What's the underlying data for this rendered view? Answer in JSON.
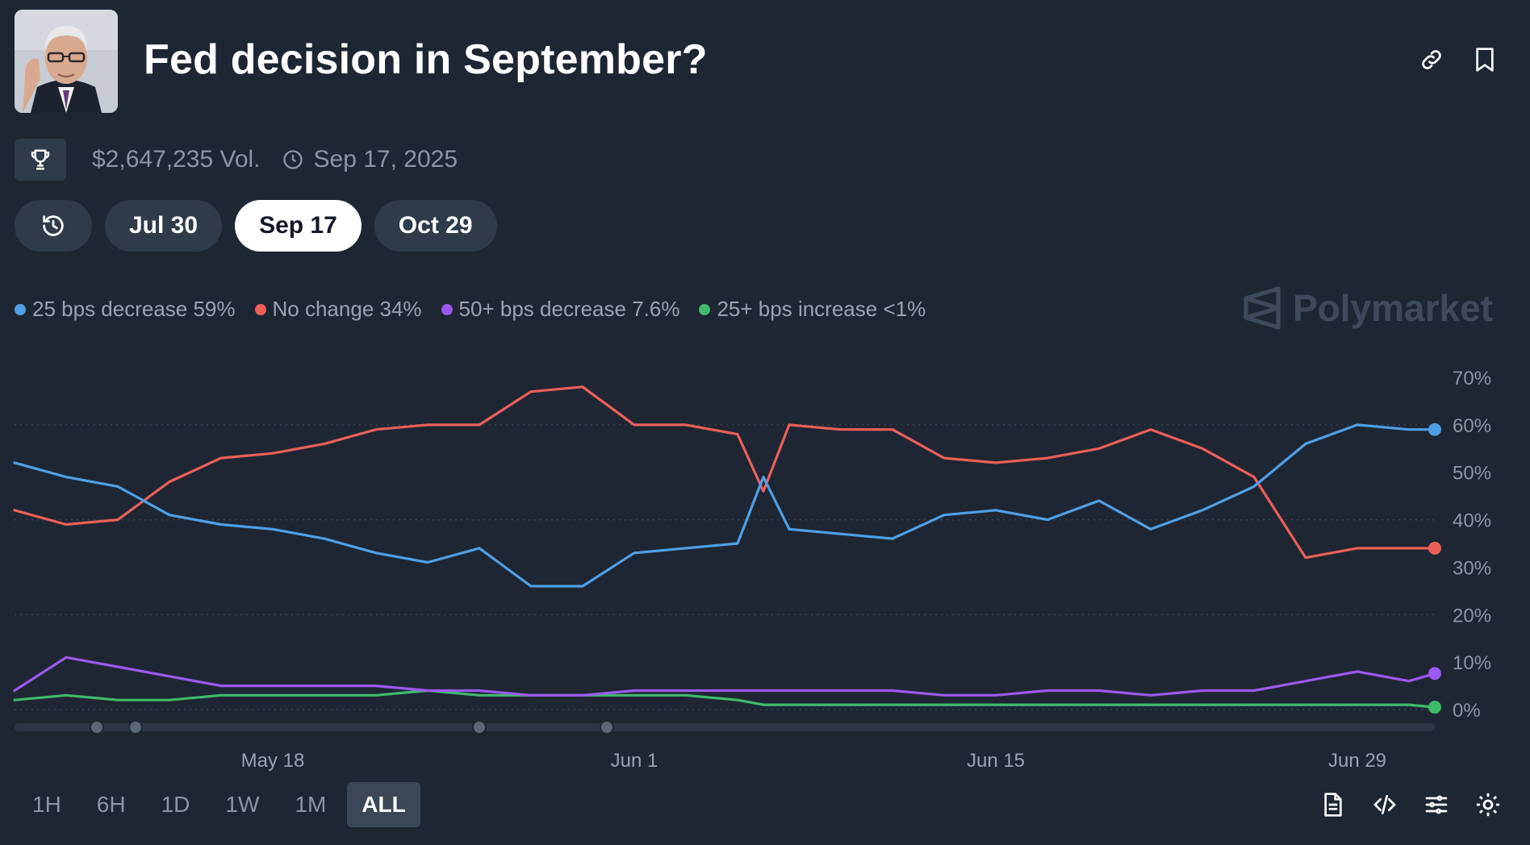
{
  "header": {
    "title": "Fed decision in September?",
    "avatar_icon": "portrait-photo"
  },
  "actions": {
    "link_icon": "link-icon",
    "bookmark_icon": "bookmark-icon"
  },
  "meta": {
    "volume": "$2,647,235 Vol.",
    "end_date": "Sep 17, 2025"
  },
  "date_tabs": [
    {
      "label": "Jul 30",
      "active": false
    },
    {
      "label": "Sep 17",
      "active": true
    },
    {
      "label": "Oct 29",
      "active": false
    }
  ],
  "legend": [
    {
      "label": "25 bps decrease 59%",
      "color": "#4f9fe6"
    },
    {
      "label": "No change 34%",
      "color": "#ec5f59"
    },
    {
      "label": "50+ bps decrease 7.6%",
      "color": "#9b59f0"
    },
    {
      "label": "25+ bps increase <1%",
      "color": "#3fba6a"
    }
  ],
  "brand": "Polymarket",
  "timeframes": [
    {
      "label": "1H",
      "active": false
    },
    {
      "label": "6H",
      "active": false
    },
    {
      "label": "1D",
      "active": false
    },
    {
      "label": "1W",
      "active": false
    },
    {
      "label": "1M",
      "active": false
    },
    {
      "label": "ALL",
      "active": true
    }
  ],
  "chart_data": {
    "type": "line",
    "x_ticks": [
      "May 18",
      "Jun 1",
      "Jun 15",
      "Jun 29"
    ],
    "y_ticks": [
      "70%",
      "60%",
      "50%",
      "40%",
      "30%",
      "20%",
      "10%",
      "0%"
    ],
    "ylim": [
      0,
      70
    ],
    "x_domain": [
      "May 8",
      "Jul 2"
    ],
    "x": [
      "May 8",
      "May 10",
      "May 12",
      "May 14",
      "May 16",
      "May 18",
      "May 20",
      "May 22",
      "May 24",
      "May 26",
      "May 28",
      "May 30",
      "Jun 1",
      "Jun 3",
      "Jun 5",
      "Jun 6",
      "Jun 7",
      "Jun 9",
      "Jun 11",
      "Jun 13",
      "Jun 15",
      "Jun 17",
      "Jun 19",
      "Jun 21",
      "Jun 23",
      "Jun 25",
      "Jun 27",
      "Jun 29",
      "Jul 1",
      "Jul 2"
    ],
    "series": [
      {
        "name": "25 bps decrease",
        "color": "#4f9fe6",
        "values": [
          52,
          49,
          47,
          41,
          39,
          38,
          36,
          33,
          31,
          34,
          26,
          26,
          33,
          34,
          35,
          49,
          38,
          37,
          36,
          41,
          42,
          40,
          44,
          38,
          42,
          47,
          56,
          60,
          59,
          59
        ]
      },
      {
        "name": "No change",
        "color": "#ec5f59",
        "values": [
          42,
          39,
          40,
          48,
          53,
          54,
          56,
          59,
          60,
          60,
          67,
          68,
          60,
          60,
          58,
          46,
          60,
          59,
          59,
          53,
          52,
          53,
          55,
          59,
          55,
          49,
          32,
          34,
          34,
          34
        ]
      },
      {
        "name": "50+ bps decrease",
        "color": "#9b59f0",
        "values": [
          4,
          11,
          9,
          7,
          5,
          5,
          5,
          5,
          4,
          4,
          3,
          3,
          4,
          4,
          4,
          4,
          4,
          4,
          4,
          3,
          3,
          4,
          4,
          3,
          4,
          4,
          6,
          8,
          6,
          7.6
        ]
      },
      {
        "name": "25+ bps increase",
        "color": "#3fba6a",
        "values": [
          2,
          3,
          2,
          2,
          3,
          3,
          3,
          3,
          4,
          3,
          3,
          3,
          3,
          3,
          2,
          1,
          1,
          1,
          1,
          1,
          1,
          1,
          1,
          1,
          1,
          1,
          1,
          1,
          1,
          0.5
        ]
      }
    ]
  }
}
